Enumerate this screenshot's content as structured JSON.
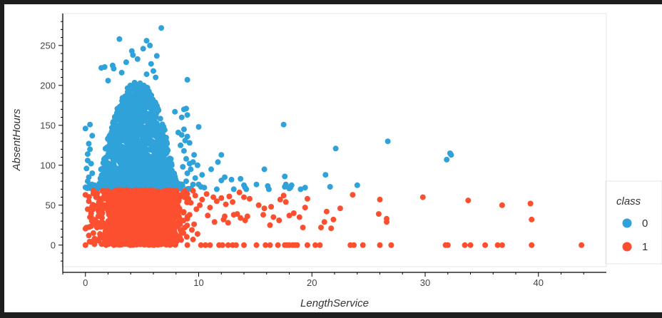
{
  "chart_data": {
    "type": "scatter",
    "title": "",
    "xlabel": "LengthService",
    "ylabel": "AbsentHours",
    "xlim": [
      -2,
      46
    ],
    "ylim": [
      -27,
      290
    ],
    "x_ticks": [
      0,
      10,
      20,
      30,
      40
    ],
    "y_ticks": [
      0,
      50,
      100,
      150,
      200,
      250
    ],
    "grid": false,
    "legend": {
      "title": "class",
      "position": "right"
    },
    "colors": {
      "0": "#30a2da",
      "1": "#fc4f30"
    },
    "series": [
      {
        "name": "0",
        "cloud": {
          "x_center": 4.6,
          "x_spread": 1.6,
          "x_min": 0,
          "x_max": 9.5,
          "y_min": 70,
          "y_max": 205,
          "y_center": 110,
          "count": 1400
        },
        "points": [
          [
            6.7,
            272
          ],
          [
            3.0,
            258
          ],
          [
            5.4,
            256
          ],
          [
            5.7,
            250
          ],
          [
            5.1,
            246
          ],
          [
            4.1,
            243
          ],
          [
            4.2,
            238
          ],
          [
            6.3,
            237
          ],
          [
            4.6,
            233
          ],
          [
            3.6,
            229
          ],
          [
            5.8,
            227
          ],
          [
            2.4,
            225
          ],
          [
            1.4,
            222
          ],
          [
            1.7,
            223
          ],
          [
            2.5,
            221
          ],
          [
            3.2,
            216
          ],
          [
            5.4,
            214
          ],
          [
            6.0,
            218
          ],
          [
            6.2,
            210
          ],
          [
            9.0,
            207
          ],
          [
            2.0,
            206
          ],
          [
            8.7,
            170
          ],
          [
            8.9,
            171
          ],
          [
            9.0,
            163
          ],
          [
            7.9,
            167
          ],
          [
            8.5,
            160
          ],
          [
            8.7,
            145
          ],
          [
            8.2,
            141
          ],
          [
            8.5,
            138
          ],
          [
            9.0,
            136
          ],
          [
            10.0,
            148
          ],
          [
            8.8,
            131
          ],
          [
            9.2,
            128
          ],
          [
            8.4,
            125
          ],
          [
            8.7,
            118
          ],
          [
            9.6,
            113
          ],
          [
            8.9,
            108
          ],
          [
            9.2,
            102
          ],
          [
            9.5,
            104
          ],
          [
            8.6,
            98
          ],
          [
            9.3,
            95
          ],
          [
            9.9,
            100
          ],
          [
            9.0,
            90
          ],
          [
            9.7,
            84
          ],
          [
            10.3,
            88
          ],
          [
            8.9,
            80
          ],
          [
            9.5,
            76
          ],
          [
            10.2,
            73
          ],
          [
            10.5,
            72
          ],
          [
            0.0,
            146
          ],
          [
            0.4,
            151
          ],
          [
            0.6,
            137
          ],
          [
            0.3,
            127
          ],
          [
            0.2,
            114
          ],
          [
            0.5,
            102
          ],
          [
            0.1,
            96
          ],
          [
            0.6,
            90
          ],
          [
            0.3,
            85
          ],
          [
            0.2,
            80
          ],
          [
            0.8,
            75
          ],
          [
            0.5,
            72
          ],
          [
            0.4,
            120
          ],
          [
            0.2,
            106
          ],
          [
            11.1,
            95
          ],
          [
            12.0,
            113
          ],
          [
            11.7,
            104
          ],
          [
            12.0,
            81
          ],
          [
            12.3,
            85
          ],
          [
            12.9,
            82
          ],
          [
            13.7,
            83
          ],
          [
            14.0,
            75
          ],
          [
            14.2,
            70
          ],
          [
            15.8,
            95
          ],
          [
            16.1,
            74
          ],
          [
            17.5,
            151
          ],
          [
            17.6,
            86
          ],
          [
            17.7,
            76
          ],
          [
            17.6,
            73
          ],
          [
            18.1,
            72
          ],
          [
            18.2,
            75
          ],
          [
            19.4,
            72
          ],
          [
            21.2,
            88
          ],
          [
            21.6,
            73
          ],
          [
            22.1,
            121
          ],
          [
            24.0,
            75
          ],
          [
            26.7,
            130
          ],
          [
            31.9,
            107
          ],
          [
            32.2,
            115
          ],
          [
            32.3,
            113
          ],
          [
            11.6,
            70
          ],
          [
            14.1,
            72
          ],
          [
            13.1,
            70
          ],
          [
            16.2,
            70
          ],
          [
            18.0,
            71
          ],
          [
            15.1,
            76
          ],
          [
            10.0,
            76
          ],
          [
            19.0,
            70
          ]
        ]
      },
      {
        "name": "1",
        "cloud": {
          "x_center": 4.8,
          "x_spread": 1.7,
          "x_min": 0,
          "x_max": 9.0,
          "y_min": 0,
          "y_max": 69,
          "count": 2200
        },
        "points": [
          [
            0.0,
            63
          ],
          [
            0.0,
            0
          ],
          [
            0.3,
            55
          ],
          [
            0.2,
            45
          ],
          [
            0.4,
            35
          ],
          [
            0.1,
            22
          ],
          [
            0.3,
            12
          ],
          [
            0.5,
            4
          ],
          [
            0.8,
            1
          ],
          [
            8.9,
            64
          ],
          [
            9.1,
            58
          ],
          [
            9.5,
            68
          ],
          [
            9.7,
            62
          ],
          [
            9.3,
            53
          ],
          [
            9.8,
            45
          ],
          [
            9.2,
            38
          ],
          [
            10.1,
            50
          ],
          [
            9.6,
            26
          ],
          [
            9.0,
            33
          ],
          [
            9.4,
            19
          ],
          [
            9.9,
            14
          ],
          [
            9.5,
            7
          ],
          [
            10.2,
            0
          ],
          [
            10.6,
            0
          ],
          [
            11.0,
            0
          ],
          [
            11.8,
            0
          ],
          [
            12.1,
            0
          ],
          [
            12.6,
            0
          ],
          [
            13.0,
            0
          ],
          [
            13.3,
            0
          ],
          [
            14.0,
            0
          ],
          [
            15.1,
            0
          ],
          [
            15.9,
            0
          ],
          [
            16.3,
            0
          ],
          [
            17.0,
            0
          ],
          [
            17.6,
            0
          ],
          [
            17.8,
            0
          ],
          [
            18.0,
            0
          ],
          [
            18.3,
            0
          ],
          [
            18.5,
            0
          ],
          [
            18.7,
            0
          ],
          [
            19.6,
            0
          ],
          [
            20.3,
            0
          ],
          [
            20.7,
            0
          ],
          [
            23.4,
            0
          ],
          [
            23.7,
            0
          ],
          [
            24.5,
            0
          ],
          [
            26.0,
            0
          ],
          [
            27.0,
            0
          ],
          [
            31.8,
            0
          ],
          [
            32.0,
            0
          ],
          [
            33.5,
            0
          ],
          [
            34.0,
            0
          ],
          [
            35.3,
            0
          ],
          [
            36.4,
            0
          ],
          [
            36.8,
            0
          ],
          [
            39.4,
            0
          ],
          [
            43.8,
            0
          ],
          [
            10.3,
            57
          ],
          [
            10.7,
            64
          ],
          [
            11.3,
            60
          ],
          [
            11.6,
            55
          ],
          [
            11.0,
            47
          ],
          [
            12.0,
            59
          ],
          [
            12.4,
            51
          ],
          [
            12.7,
            61
          ],
          [
            13.0,
            54
          ],
          [
            13.6,
            66
          ],
          [
            14.0,
            60
          ],
          [
            14.5,
            58
          ],
          [
            15.3,
            50
          ],
          [
            15.8,
            46
          ],
          [
            16.4,
            48
          ],
          [
            17.2,
            57
          ],
          [
            17.5,
            62
          ],
          [
            17.7,
            54
          ],
          [
            18.4,
            40
          ],
          [
            19.4,
            47
          ],
          [
            19.6,
            58
          ],
          [
            21.3,
            42
          ],
          [
            21.9,
            32
          ],
          [
            22.5,
            46
          ],
          [
            23.6,
            63
          ],
          [
            26.0,
            57
          ],
          [
            29.8,
            60
          ],
          [
            33.8,
            56
          ],
          [
            36.8,
            50
          ],
          [
            39.3,
            52
          ],
          [
            10.8,
            37
          ],
          [
            11.4,
            29
          ],
          [
            12.3,
            36
          ],
          [
            12.6,
            28
          ],
          [
            13.1,
            38
          ],
          [
            13.7,
            34
          ],
          [
            14.1,
            31
          ],
          [
            14.3,
            36
          ],
          [
            15.7,
            38
          ],
          [
            16.3,
            25
          ],
          [
            17.1,
            31
          ],
          [
            18.0,
            37
          ],
          [
            18.9,
            35
          ],
          [
            19.2,
            22
          ],
          [
            20.8,
            22
          ],
          [
            21.7,
            21
          ],
          [
            21.1,
            29
          ],
          [
            25.9,
            39
          ],
          [
            26.6,
            29
          ],
          [
            26.6,
            33
          ],
          [
            39.4,
            32
          ],
          [
            16.6,
            35
          ],
          [
            12.2,
            32
          ],
          [
            13.4,
            39
          ]
        ]
      }
    ]
  }
}
